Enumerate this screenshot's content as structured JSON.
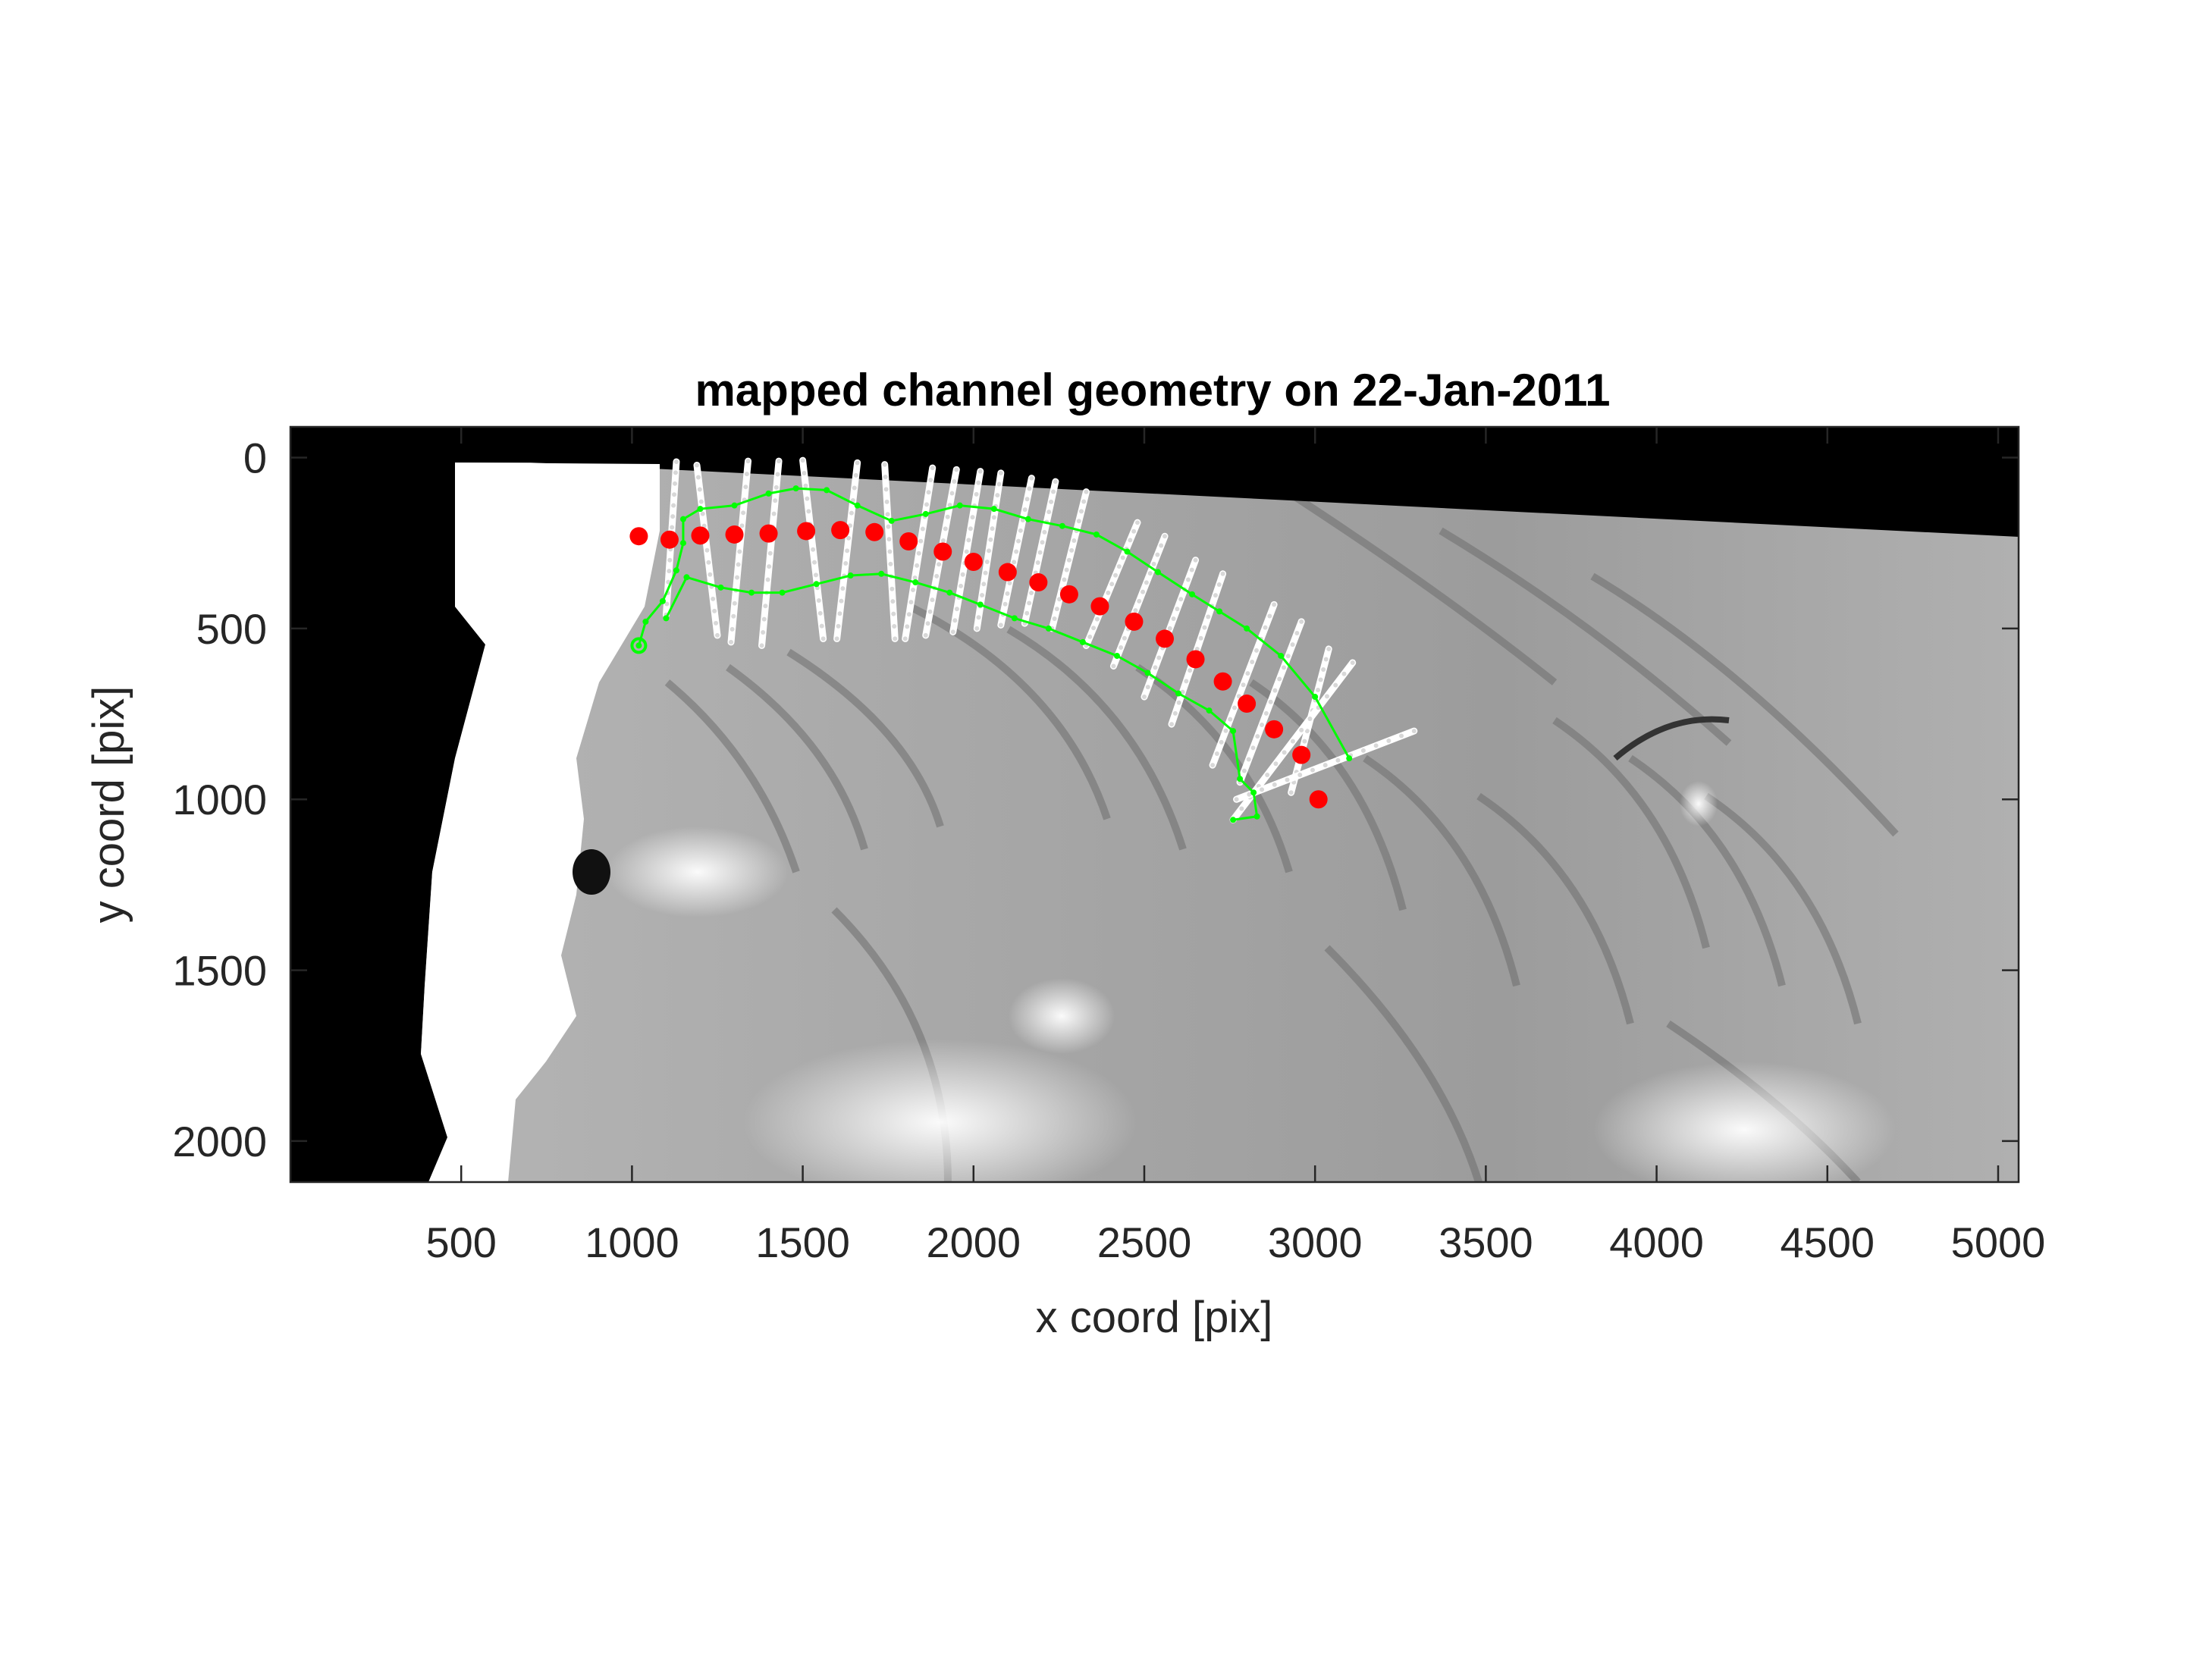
{
  "figure": {
    "title": "mapped channel geometry on 22-Jan-2011"
  },
  "chart_data": {
    "type": "scatter",
    "title": "mapped channel geometry on 22-Jan-2011",
    "xlabel": "x coord [pix]",
    "ylabel": "y coord [pix]",
    "xlim": [
      0,
      5060
    ],
    "ylim": [
      2120,
      -90
    ],
    "y_axis_direction": "reversed (0 at top)",
    "grid": false,
    "legend": "none",
    "x_ticks": [
      "500",
      "1000",
      "1500",
      "2000",
      "2500",
      "3000",
      "3500",
      "4000",
      "4500",
      "5000"
    ],
    "y_ticks": [
      "0",
      "500",
      "1000",
      "1500",
      "2000"
    ],
    "background": "grayscale image of glacier surface; black region along left edge and along the top edge",
    "colors": {
      "centerline_points": "#ff0000",
      "channel_outline": "#00ff00",
      "transects": "#ffffff"
    },
    "series": [
      {
        "type": "scatter",
        "values": [
          [
            1020,
            230
          ],
          [
            1110,
            240
          ],
          [
            1200,
            228
          ],
          [
            1300,
            225
          ],
          [
            1400,
            222
          ],
          [
            1510,
            215
          ],
          [
            1610,
            212
          ],
          [
            1710,
            218
          ],
          [
            1810,
            245
          ],
          [
            1910,
            275
          ],
          [
            2000,
            305
          ],
          [
            2100,
            335
          ],
          [
            2190,
            365
          ],
          [
            2280,
            400
          ],
          [
            2370,
            435
          ],
          [
            2470,
            480
          ],
          [
            2560,
            530
          ],
          [
            2650,
            590
          ],
          [
            2730,
            655
          ],
          [
            2800,
            720
          ],
          [
            2880,
            795
          ],
          [
            2960,
            870
          ],
          [
            3010,
            1000
          ]
        ]
      },
      {
        "type": "line",
        "values": [
          [
            1020,
            550
          ],
          [
            1040,
            480
          ],
          [
            1090,
            420
          ],
          [
            1130,
            330
          ],
          [
            1150,
            250
          ],
          [
            1150,
            180
          ],
          [
            1200,
            150
          ],
          [
            1300,
            140
          ],
          [
            1400,
            105
          ],
          [
            1480,
            90
          ],
          [
            1570,
            95
          ],
          [
            1660,
            140
          ],
          [
            1760,
            185
          ],
          [
            1860,
            165
          ],
          [
            1960,
            140
          ],
          [
            2060,
            150
          ],
          [
            2160,
            180
          ],
          [
            2260,
            200
          ],
          [
            2360,
            225
          ],
          [
            2450,
            275
          ],
          [
            2540,
            335
          ],
          [
            2640,
            400
          ],
          [
            2720,
            450
          ],
          [
            2800,
            500
          ],
          [
            2900,
            580
          ],
          [
            3000,
            700
          ],
          [
            3100,
            880
          ]
        ]
      },
      {
        "type": "line",
        "values": [
          [
            1100,
            470
          ],
          [
            1160,
            350
          ],
          [
            1260,
            380
          ],
          [
            1350,
            395
          ],
          [
            1440,
            395
          ],
          [
            1540,
            370
          ],
          [
            1640,
            345
          ],
          [
            1730,
            340
          ],
          [
            1830,
            365
          ],
          [
            1930,
            395
          ],
          [
            2020,
            430
          ],
          [
            2120,
            470
          ],
          [
            2220,
            500
          ],
          [
            2320,
            540
          ],
          [
            2420,
            580
          ],
          [
            2510,
            630
          ],
          [
            2600,
            690
          ],
          [
            2690,
            740
          ],
          [
            2760,
            800
          ],
          [
            2780,
            940
          ],
          [
            2820,
            980
          ],
          [
            2830,
            1050
          ],
          [
            2760,
            1060
          ]
        ]
      },
      {
        "type": "line",
        "values": [
          [
            [
              1100,
              460
            ],
            [
              1130,
              12
            ]
          ],
          [
            [
              1250,
              520
            ],
            [
              1190,
              22
            ]
          ],
          [
            [
              1290,
              540
            ],
            [
              1340,
              10
            ]
          ],
          [
            [
              1380,
              550
            ],
            [
              1430,
              10
            ]
          ],
          [
            [
              1560,
              530
            ],
            [
              1500,
              8
            ]
          ],
          [
            [
              1600,
              530
            ],
            [
              1660,
              15
            ]
          ],
          [
            [
              1770,
              530
            ],
            [
              1740,
              20
            ]
          ],
          [
            [
              1800,
              530
            ],
            [
              1880,
              30
            ]
          ],
          [
            [
              1860,
              520
            ],
            [
              1950,
              35
            ]
          ],
          [
            [
              1940,
              510
            ],
            [
              2020,
              40
            ]
          ],
          [
            [
              2010,
              500
            ],
            [
              2080,
              45
            ]
          ],
          [
            [
              2080,
              490
            ],
            [
              2170,
              60
            ]
          ],
          [
            [
              2150,
              485
            ],
            [
              2240,
              70
            ]
          ],
          [
            [
              2230,
              500
            ],
            [
              2330,
              100
            ]
          ],
          [
            [
              2330,
              550
            ],
            [
              2480,
              190
            ]
          ],
          [
            [
              2410,
              610
            ],
            [
              2560,
              230
            ]
          ],
          [
            [
              2500,
              700
            ],
            [
              2650,
              300
            ]
          ],
          [
            [
              2580,
              780
            ],
            [
              2730,
              340
            ]
          ],
          [
            [
              2700,
              900
            ],
            [
              2880,
              430
            ]
          ],
          [
            [
              2780,
              950
            ],
            [
              2960,
              480
            ]
          ],
          [
            [
              2930,
              980
            ],
            [
              3040,
              560
            ]
          ],
          [
            [
              2760,
              1060
            ],
            [
              3110,
              600
            ]
          ],
          [
            [
              2770,
              1000
            ],
            [
              3290,
              800
            ]
          ]
        ]
      }
    ]
  }
}
